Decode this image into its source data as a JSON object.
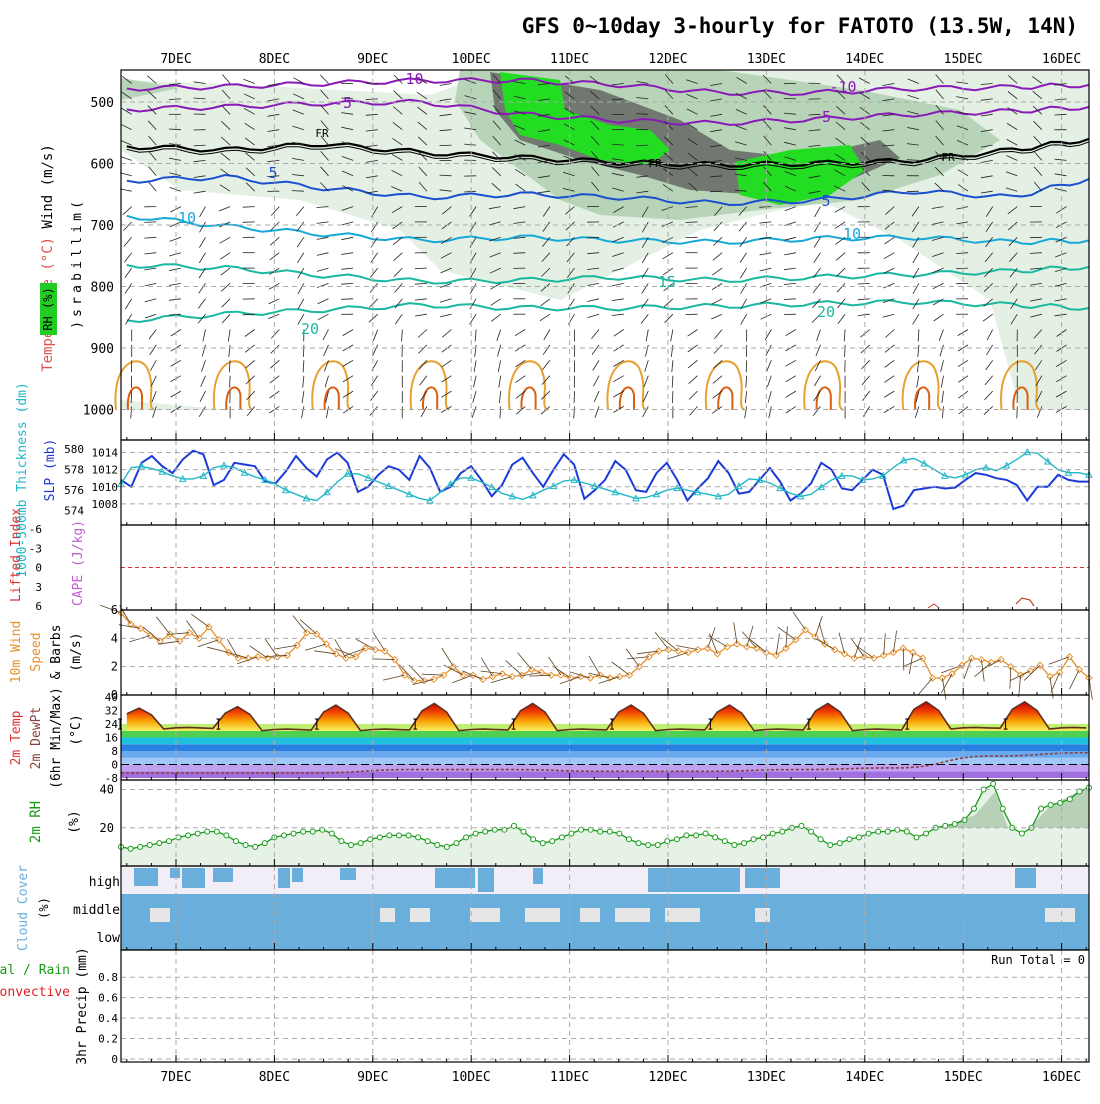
{
  "title": "GFS 0~10day 3-hourly for FATOTO (13.5W, 14N)",
  "x_axis": {
    "type": "date",
    "unit": "day",
    "ticks": [
      "7DEC",
      "8DEC",
      "9DEC",
      "10DEC",
      "11DEC",
      "12DEC",
      "13DEC",
      "14DEC",
      "15DEC",
      "16DEC"
    ],
    "range": [
      "2024-12-06T12:00",
      "2024-12-16T06:00"
    ]
  },
  "panels": {
    "upper_air": {
      "ylabel_parts": [
        "RH (%)",
        "Temperature (°C)",
        "Wind (m/s)"
      ],
      "ylabel2": "(millibars)",
      "ylabel2_letters": [
        "(",
        "m",
        "i",
        "l",
        "l",
        "i",
        "b",
        "a",
        "r",
        "s",
        ")"
      ],
      "y_ticks": [
        "500",
        "600",
        "700",
        "800",
        "900",
        "1000"
      ]
    },
    "thickness": {
      "ylabel_left": "1000-500mb Thickness (dm)",
      "ylabel_right": "SLP (mb)",
      "y_ticks_left": [
        "580",
        "578",
        "576",
        "574"
      ],
      "y_ticks_right": [
        "1014",
        "1012",
        "1010",
        "1008"
      ]
    },
    "lifted": {
      "ylabel_left": "Lifted Index",
      "ylabel_right": "CAPE (J/kg)",
      "y_ticks": [
        "-6",
        "-3",
        "0",
        "3",
        "6"
      ]
    },
    "wind10m": {
      "ylabel_parts": [
        "10m Wind",
        "Speed",
        "& Barbs"
      ],
      "ylabel_unit": "(m/s)",
      "y_ticks": [
        "6",
        "4",
        "2",
        "0"
      ]
    },
    "temp2m": {
      "ylabel_parts": [
        "2m Temp",
        "2m DewPt",
        "(6hr Min/Max)"
      ],
      "ylabel_unit": "(°C)",
      "y_ticks": [
        "40",
        "32",
        "24",
        "16",
        "8",
        "0",
        "-8"
      ]
    },
    "rh2m": {
      "ylabel_left": "2m RH",
      "ylabel_unit": "(%)",
      "y_ticks": [
        "40",
        "20"
      ]
    },
    "cloud": {
      "ylabel": "Cloud Cover",
      "ylabel_unit": "(%)",
      "levels": [
        "high",
        "middle",
        "low"
      ]
    },
    "precip": {
      "ylabel_parts": [
        "Total / Rain",
        "Convective"
      ],
      "ylabel_main": "3hr Precip (mm)",
      "y_ticks": [
        "0.8",
        "0.6",
        "0.4",
        "0.2",
        "0"
      ],
      "run_total": "Run Total = 0"
    }
  },
  "colors": {
    "grid": "#aaaaaa",
    "temp_purple": "#8a1ab8",
    "temp_blue": "#1a50d0",
    "temp_cyan": "#17a8d8",
    "temp_teal": "#1ab8a0",
    "temp_orange": "#e8a030",
    "rh_light": "#e4f0e4",
    "rh_mid": "#b8d4b8",
    "rh_dark": "#707870",
    "rh_green": "#22dd22",
    "slp": "#1c3ad8",
    "thickness": "#20b8c8",
    "wind10m": "#e8902a",
    "rh2m": "#1a9a1a",
    "cloud": "#6aaedc",
    "cloud_bg": "#e6e6e6",
    "precip_total": "#1a9a1a",
    "precip_conv": "#e02020"
  },
  "chart_data": [
    {
      "type": "line",
      "name": "upper-air temperature isotherms",
      "ylabel": "millibars",
      "ylim": [
        1000,
        450
      ],
      "isotherm_labels": [
        "-10",
        "-5",
        "FR",
        "5",
        "10",
        "15",
        "20"
      ],
      "series": [
        {
          "label": "-10",
          "x": [
            6.5,
            7.5,
            8.5,
            9.5,
            10.5,
            11.5,
            12.5,
            13.5,
            14.5,
            15.5,
            16.3
          ],
          "values": [
            478,
            475,
            470,
            465,
            465,
            472,
            485,
            485,
            478,
            476,
            472
          ]
        },
        {
          "label": "-5",
          "x": [
            6.5,
            7.5,
            8.5,
            9.5,
            10.5,
            11.5,
            12.5,
            13.5,
            14.5,
            15.5,
            16.3
          ],
          "values": [
            512,
            508,
            502,
            500,
            520,
            530,
            535,
            528,
            520,
            515,
            508
          ]
        },
        {
          "label": "FR",
          "x": [
            6.5,
            7.5,
            8.5,
            9.5,
            10.5,
            11.5,
            12.5,
            13.5,
            14.5,
            15.5,
            16.3
          ],
          "values": [
            572,
            578,
            568,
            582,
            590,
            598,
            602,
            600,
            595,
            578,
            560
          ]
        },
        {
          "label": "5",
          "x": [
            6.5,
            7.5,
            8.5,
            9.5,
            10.5,
            11.5,
            12.5,
            13.5,
            14.5,
            15.5,
            16.3
          ],
          "values": [
            628,
            622,
            640,
            655,
            650,
            655,
            665,
            660,
            645,
            655,
            625
          ]
        },
        {
          "label": "10",
          "x": [
            6.5,
            7.5,
            8.5,
            9.5,
            10.5,
            11.5,
            12.5,
            13.5,
            14.5,
            15.5,
            16.3
          ],
          "values": [
            685,
            702,
            715,
            725,
            720,
            725,
            728,
            722,
            720,
            728,
            725
          ]
        },
        {
          "label": "15",
          "x": [
            6.5,
            7.5,
            8.5,
            9.5,
            10.5,
            11.5,
            12.5,
            13.5,
            14.5,
            15.5,
            16.3
          ],
          "values": [
            765,
            770,
            782,
            792,
            790,
            785,
            790,
            785,
            780,
            775,
            768
          ]
        },
        {
          "label": "20",
          "x": [
            6.5,
            7.5,
            8.5,
            9.5,
            10.5,
            11.5,
            12.5,
            13.5,
            14.5,
            15.5,
            16.3
          ],
          "values": [
            855,
            845,
            838,
            830,
            835,
            835,
            832,
            828,
            825,
            830,
            835
          ]
        }
      ]
    },
    {
      "type": "line",
      "name": "thickness and SLP",
      "series": [
        {
          "label": "SLP (mb)",
          "axis": "right",
          "ylim": [
            1006,
            1015
          ],
          "values": [
            1010.8,
            1010.0,
            1012.8,
            1013.6,
            1012.4,
            1011.6,
            1013.2,
            1014.2,
            1013.8,
            1010.2,
            1010.8,
            1012.8,
            1012.6,
            1012.4,
            1010.6,
            1010.4,
            1011.8,
            1013.6,
            1012.2,
            1011.2,
            1013.2,
            1014.0,
            1012.8,
            1009.4,
            1010.0,
            1011.4,
            1012.4,
            1012.0,
            1010.8,
            1013.6,
            1012.2,
            1009.4,
            1010.0,
            1011.6,
            1012.4,
            1010.8,
            1008.9,
            1010.2,
            1012.6,
            1013.4,
            1011.6,
            1010.0,
            1012.0,
            1013.8,
            1012.6,
            1008.6,
            1009.6,
            1010.8,
            1013.0,
            1012.0,
            1009.6,
            1009.4,
            1011.6,
            1012.8,
            1010.8,
            1008.4,
            1009.8,
            1011.0,
            1013.0,
            1011.6,
            1009.2,
            1009.4,
            1010.8,
            1012.2,
            1010.6,
            1008.4,
            1009.2,
            1010.4,
            1012.8,
            1012.0,
            1009.8,
            1009.6,
            1010.8,
            1012.0,
            1011.4,
            1007.4,
            1007.8,
            1009.6,
            1009.8,
            1010.0,
            1009.8,
            1009.9,
            1010.8,
            1011.6,
            1011.4,
            1011.0,
            1010.8,
            1010.2,
            1008.4,
            1010.0,
            1010.0,
            1011.4,
            1010.8,
            1010.6,
            1010.6
          ]
        },
        {
          "label": "1000-500mb Thickness (dm)",
          "axis": "left",
          "ylim": [
            573,
            580.5
          ],
          "values": [
            576.6,
            578.2,
            578.3,
            578.1,
            577.8,
            577.4,
            577.1,
            577.1,
            577.4,
            578.2,
            578.4,
            578.2,
            577.7,
            577.3,
            577.0,
            576.6,
            576.0,
            575.6,
            575.2,
            575.0,
            575.8,
            576.8,
            577.6,
            577.6,
            577.2,
            576.8,
            576.4,
            576.0,
            575.6,
            575.2,
            575.0,
            575.8,
            576.6,
            577.2,
            577.2,
            576.8,
            576.3,
            575.7,
            575.4,
            575.1,
            575.5,
            576.0,
            576.4,
            576.9,
            577.0,
            576.7,
            576.4,
            576.1,
            575.8,
            575.5,
            575.2,
            575.3,
            575.6,
            576.0,
            576.2,
            576.0,
            575.8,
            575.6,
            575.4,
            575.6,
            576.4,
            577.1,
            577.0,
            576.7,
            576.2,
            575.7,
            575.4,
            575.6,
            576.3,
            577.0,
            577.4,
            577.4,
            577.0,
            577.1,
            577.4,
            578.2,
            578.9,
            579.1,
            578.6,
            578.0,
            577.4,
            577.2,
            577.5,
            578.0,
            578.2,
            577.9,
            578.4,
            579.0,
            579.7,
            579.6,
            578.8,
            578.0,
            577.7,
            577.7,
            577.5
          ]
        }
      ]
    },
    {
      "type": "line",
      "name": "lifted index and CAPE",
      "ylim": [
        6,
        -6
      ],
      "series": [
        {
          "label": "Lifted Index",
          "values": []
        },
        {
          "label": "CAPE (J/kg)",
          "values": []
        }
      ]
    },
    {
      "type": "line",
      "name": "10m wind speed",
      "ylabel": "m/s",
      "ylim": [
        0,
        6
      ],
      "values": [
        5.8,
        5.0,
        4.7,
        4.2,
        3.8,
        4.3,
        3.8,
        4.4,
        4.0,
        4.8,
        3.9,
        3.0,
        2.6,
        2.6,
        2.7,
        2.6,
        2.7,
        2.8,
        3.5,
        4.4,
        4.3,
        3.6,
        2.9,
        2.6,
        2.7,
        3.3,
        3.2,
        3.1,
        2.5,
        1.4,
        1.0,
        1.0,
        1.1,
        1.4,
        2.0,
        1.4,
        1.4,
        1.1,
        1.3,
        1.5,
        1.3,
        1.4,
        1.8,
        1.6,
        1.4,
        1.4,
        1.2,
        1.3,
        1.2,
        1.4,
        1.2,
        1.3,
        1.4,
        2.0,
        2.7,
        3.1,
        3.2,
        3.1,
        3.0,
        3.2,
        3.3,
        2.9,
        3.4,
        3.6,
        3.4,
        3.3,
        3.0,
        2.8,
        3.3,
        3.9,
        4.6,
        4.1,
        3.6,
        3.2,
        2.9,
        2.6,
        2.7,
        2.6,
        2.8,
        3.0,
        3.3,
        3.0,
        2.6,
        1.2,
        1.2,
        1.5,
        2.1,
        2.6,
        2.5,
        2.3,
        2.5,
        2.0,
        1.4,
        1.7,
        2.1,
        1.3,
        1.6,
        2.7,
        1.8,
        1.2
      ]
    },
    {
      "type": "area",
      "name": "2m temperature and dewpoint",
      "ylabel": "°C",
      "ylim": [
        -8,
        40
      ],
      "daily_max": [
        34,
        35,
        36,
        37,
        37,
        36,
        36,
        37,
        38,
        38
      ],
      "daily_min": [
        21,
        20,
        20,
        20,
        20,
        20,
        20,
        20,
        21,
        21
      ],
      "dewpoint": [
        -5,
        -5,
        -5,
        -3,
        -3,
        -4,
        -4,
        -3,
        -2,
        5,
        7
      ]
    },
    {
      "type": "area",
      "name": "2m relative humidity",
      "ylabel": "%",
      "ylim": [
        0,
        45
      ],
      "values": [
        10,
        9,
        10,
        11,
        12,
        13,
        15,
        16,
        17,
        18,
        18,
        16,
        13,
        11,
        10,
        12,
        15,
        16,
        17,
        18,
        18,
        19,
        17,
        13,
        11,
        12,
        14,
        15,
        16,
        16,
        16,
        15,
        13,
        11,
        10,
        12,
        15,
        17,
        18,
        19,
        19,
        21,
        18,
        14,
        12,
        13,
        15,
        17,
        19,
        19,
        18,
        18,
        17,
        14,
        12,
        11,
        11,
        13,
        14,
        16,
        16,
        17,
        15,
        13,
        11,
        12,
        14,
        15,
        17,
        18,
        20,
        21,
        18,
        14,
        11,
        12,
        14,
        15,
        17,
        18,
        18,
        19,
        18,
        15,
        17,
        20,
        21,
        22,
        24,
        30,
        40,
        43,
        30,
        20,
        17,
        20,
        30,
        32,
        33,
        35,
        39,
        41
      ]
    },
    {
      "type": "bar",
      "name": "cloud cover",
      "levels": [
        "high",
        "middle",
        "low"
      ]
    },
    {
      "type": "bar",
      "name": "3hr precipitation",
      "ylabel": "3hr Precip (mm)",
      "ylim": [
        0,
        1
      ],
      "values": []
    }
  ]
}
